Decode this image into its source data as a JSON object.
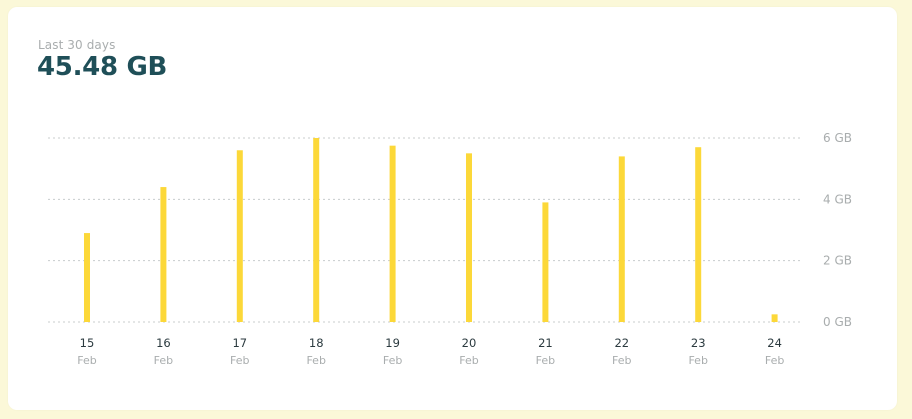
{
  "summary": {
    "caption": "Last 30 days",
    "total": "45.48 GB"
  },
  "colors": {
    "bar": "#fcd839",
    "grid": "#c8cccd",
    "title": "#1f4f58",
    "muted": "#a9adae",
    "day_label": "#2b3a3f",
    "page_background": "#fbf8d8"
  },
  "chart_data": {
    "type": "bar",
    "categories": [
      "15 Feb",
      "16 Feb",
      "17 Feb",
      "18 Feb",
      "19 Feb",
      "20 Feb",
      "21 Feb",
      "22 Feb",
      "23 Feb",
      "24 Feb"
    ],
    "x_day_labels": [
      "15",
      "16",
      "17",
      "18",
      "19",
      "20",
      "21",
      "22",
      "23",
      "24"
    ],
    "x_month_labels": [
      "Feb",
      "Feb",
      "Feb",
      "Feb",
      "Feb",
      "Feb",
      "Feb",
      "Feb",
      "Feb",
      "Feb"
    ],
    "values": [
      2.9,
      4.4,
      5.6,
      6.0,
      5.75,
      5.5,
      3.9,
      5.4,
      5.7,
      0.25
    ],
    "unit": "GB",
    "ylim": [
      0,
      6
    ],
    "yticks": [
      0,
      2,
      4,
      6
    ],
    "ytick_labels": [
      "0 GB",
      "2 GB",
      "4 GB",
      "6 GB"
    ],
    "grid": true,
    "grid_style": "dotted",
    "y_axis_position": "right",
    "legend": "none"
  }
}
